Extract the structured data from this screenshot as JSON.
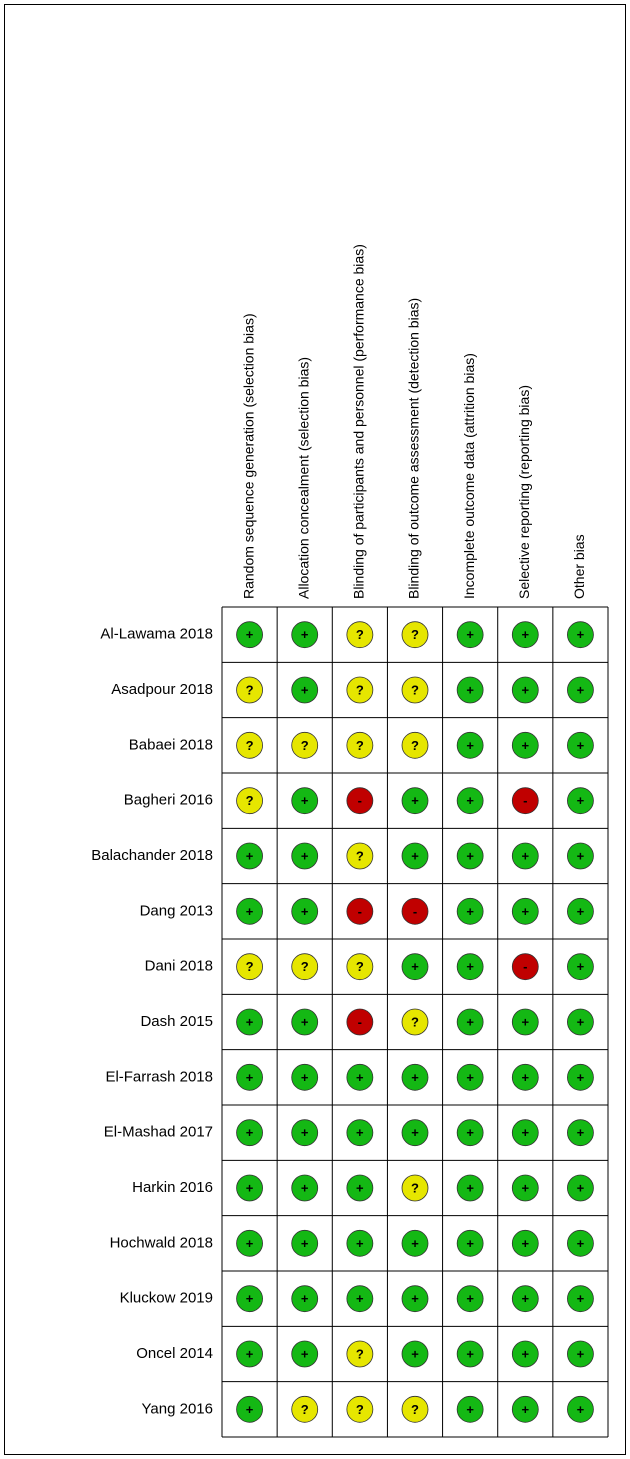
{
  "columns": [
    "Random sequence generation (selection bias)",
    "Allocation concealment (selection bias)",
    "Blinding of participants and personnel (performance bias)",
    "Blinding of outcome assessment (detection bias)",
    "Incomplete outcome data (attrition bias)",
    "Selective reporting (reporting bias)",
    "Other bias"
  ],
  "judgment_colors": {
    "+": "#14b814",
    "?": "#e6e600",
    "-": "#c00000"
  },
  "rows": [
    {
      "study": "Al-Lawama 2018",
      "cells": [
        "+",
        "+",
        "?",
        "?",
        "+",
        "+",
        "+"
      ]
    },
    {
      "study": "Asadpour 2018",
      "cells": [
        "?",
        "+",
        "?",
        "?",
        "+",
        "+",
        "+"
      ]
    },
    {
      "study": "Babaei 2018",
      "cells": [
        "?",
        "?",
        "?",
        "?",
        "+",
        "+",
        "+"
      ]
    },
    {
      "study": "Bagheri 2016",
      "cells": [
        "?",
        "+",
        "-",
        "+",
        "+",
        "-",
        "+"
      ]
    },
    {
      "study": "Balachander 2018",
      "cells": [
        "+",
        "+",
        "?",
        "+",
        "+",
        "+",
        "+"
      ]
    },
    {
      "study": "Dang 2013",
      "cells": [
        "+",
        "+",
        "-",
        "-",
        "+",
        "+",
        "+"
      ]
    },
    {
      "study": "Dani 2018",
      "cells": [
        "?",
        "?",
        "?",
        "+",
        "+",
        "-",
        "+"
      ]
    },
    {
      "study": "Dash 2015",
      "cells": [
        "+",
        "+",
        "-",
        "?",
        "+",
        "+",
        "+"
      ]
    },
    {
      "study": "El-Farrash 2018",
      "cells": [
        "+",
        "+",
        "+",
        "+",
        "+",
        "+",
        "+"
      ]
    },
    {
      "study": "El-Mashad 2017",
      "cells": [
        "+",
        "+",
        "+",
        "+",
        "+",
        "+",
        "+"
      ]
    },
    {
      "study": "Harkin 2016",
      "cells": [
        "+",
        "+",
        "+",
        "?",
        "+",
        "+",
        "+"
      ]
    },
    {
      "study": "Hochwald 2018",
      "cells": [
        "+",
        "+",
        "+",
        "+",
        "+",
        "+",
        "+"
      ]
    },
    {
      "study": "Kluckow 2019",
      "cells": [
        "+",
        "+",
        "+",
        "+",
        "+",
        "+",
        "+"
      ]
    },
    {
      "study": "Oncel 2014",
      "cells": [
        "+",
        "+",
        "?",
        "+",
        "+",
        "+",
        "+"
      ]
    },
    {
      "study": "Yang 2016",
      "cells": [
        "+",
        "?",
        "?",
        "?",
        "+",
        "+",
        "+"
      ]
    }
  ]
}
